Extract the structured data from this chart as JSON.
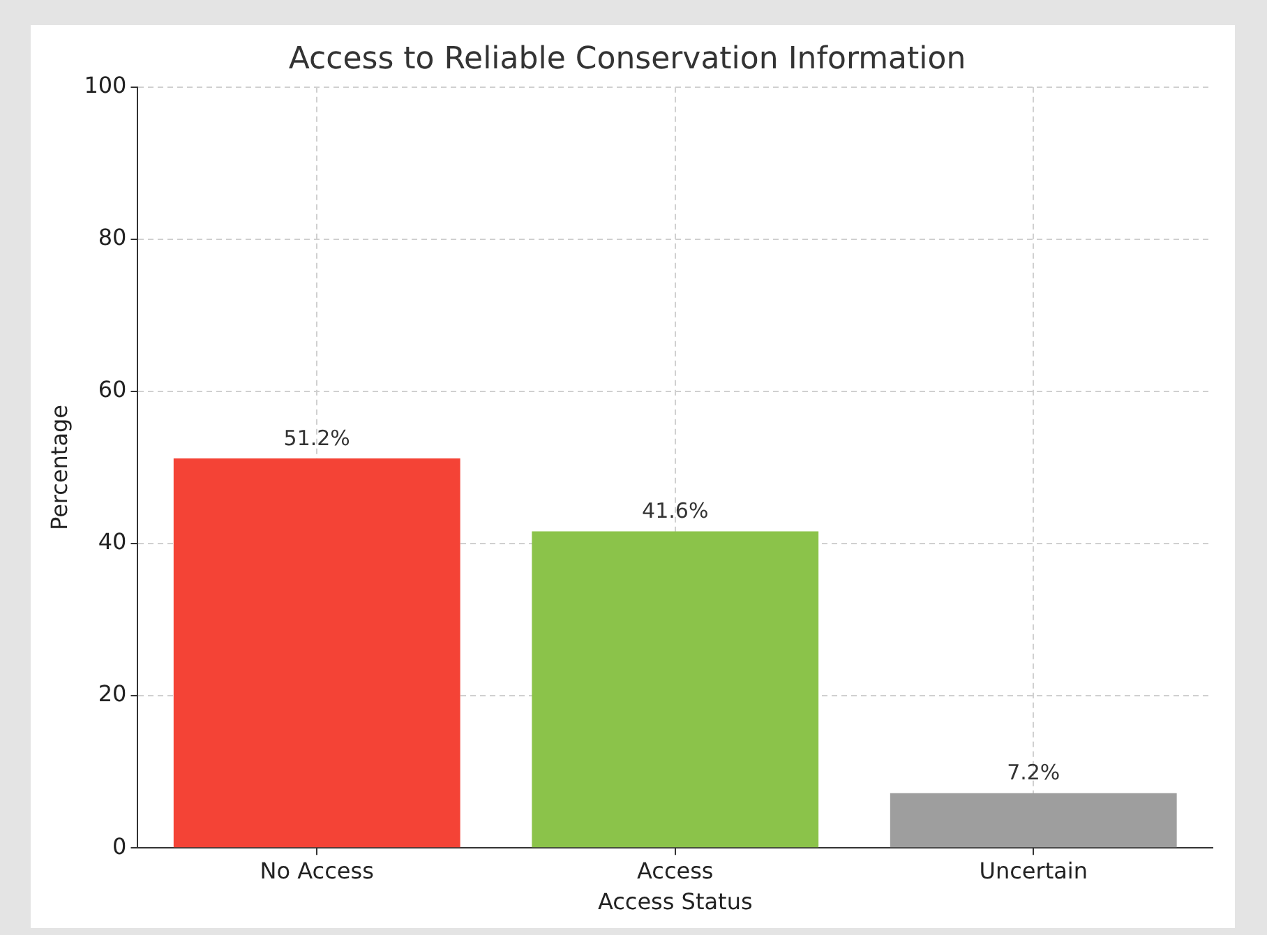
{
  "chart_data": {
    "type": "bar",
    "title": "Access to Reliable Conservation Information",
    "xlabel": "Access Status",
    "ylabel": "Percentage",
    "categories": [
      "No Access",
      "Access",
      "Uncertain"
    ],
    "values": [
      51.2,
      41.6,
      7.2
    ],
    "colors": [
      "#f44336",
      "#8bc34a",
      "#9e9e9e"
    ],
    "value_labels": [
      "51.2%",
      "41.6%",
      "7.2%"
    ],
    "ylim": [
      0,
      100
    ],
    "yticks": [
      0,
      20,
      40,
      60,
      80,
      100
    ],
    "grid": true,
    "legend": false
  }
}
